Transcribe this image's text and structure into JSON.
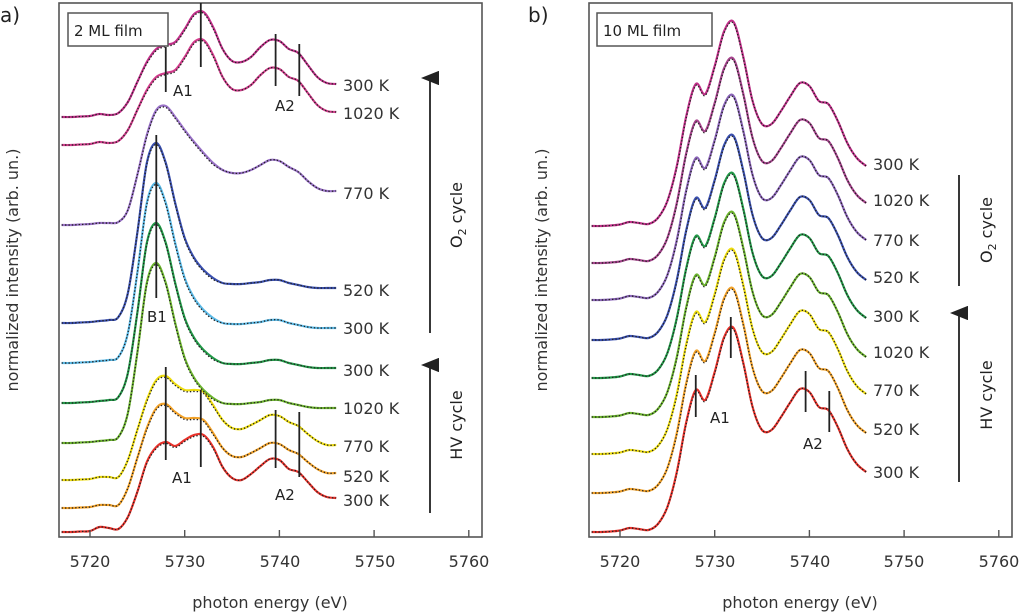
{
  "chart_data": [
    {
      "type": "line",
      "panel_label": "a)",
      "legend": "2 ML film",
      "xlabel": "photon energy (eV)",
      "ylabel": "normalized intensity (arb. un.)",
      "xlim": [
        5716.7,
        5761.4
      ],
      "ylim": [
        0,
        53.4
      ],
      "xticks": [
        "5720",
        "5730",
        "5740",
        "5750",
        "5760"
      ],
      "x": [
        5717,
        5718,
        5719,
        5720,
        5721,
        5722,
        5723,
        5724,
        5725,
        5726,
        5727,
        5728,
        5729,
        5730,
        5731,
        5732,
        5733,
        5734,
        5735,
        5736,
        5737,
        5738,
        5739,
        5740,
        5741,
        5742,
        5743,
        5744,
        5745,
        5746
      ],
      "shapes": {
        "A_HV300": [
          0,
          0,
          0.05,
          0.1,
          0.5,
          0.4,
          0.3,
          1.5,
          4,
          7,
          8.5,
          9.0,
          8.6,
          9.2,
          9.7,
          9.7,
          8.5,
          6.5,
          5.4,
          5.2,
          5.8,
          6.6,
          7.3,
          7.2,
          6.3,
          6.0,
          5.0,
          4.0,
          3.5,
          3.4
        ],
        "A_HV": [
          0,
          0,
          0.05,
          0.1,
          0.3,
          0.3,
          0.3,
          2,
          5,
          8,
          10,
          10.4,
          9.6,
          9.0,
          9.0,
          8.8,
          7.5,
          6.0,
          5.2,
          5.1,
          5.5,
          6.0,
          6.5,
          6.4,
          5.8,
          5.4,
          4.6,
          3.9,
          3.5,
          3.5
        ],
        "B": [
          0,
          0,
          0.05,
          0.1,
          0.2,
          0.3,
          0.6,
          3,
          9,
          16,
          18,
          16,
          12,
          8.5,
          6.5,
          5.3,
          4.5,
          4.0,
          3.9,
          3.9,
          4.0,
          4.1,
          4.3,
          4.3,
          4.0,
          3.8,
          3.6,
          3.5,
          3.5,
          3.5
        ],
        "O2_770": [
          0,
          0,
          0.05,
          0.1,
          0.2,
          0.2,
          0.3,
          1.5,
          5,
          9,
          11.5,
          11.9,
          10.8,
          9.5,
          8.3,
          7.2,
          6.2,
          5.5,
          5.2,
          5.2,
          5.5,
          6.0,
          6.5,
          6.4,
          5.8,
          5.3,
          4.4,
          3.7,
          3.4,
          3.4
        ],
        "A_O2": [
          0,
          0,
          0.05,
          0.1,
          0.3,
          0.2,
          0.4,
          1.5,
          3.5,
          5.5,
          6.8,
          7.2,
          7.5,
          8.8,
          10.3,
          10.5,
          9.0,
          6.8,
          5.6,
          5.5,
          6.0,
          7.0,
          7.7,
          7.6,
          6.8,
          6.4,
          5.2,
          4.0,
          3.4,
          3.3
        ]
      },
      "series": [
        {
          "label": "300 K",
          "cycle": "HV",
          "color": "#e8312a",
          "shape": "A_HV300",
          "offset": 0.5
        },
        {
          "label": "520 K",
          "cycle": "HV",
          "color": "#f3a228",
          "shape": "A_HV",
          "offset": 2.9
        },
        {
          "label": "770 K",
          "cycle": "HV",
          "color": "#eedd10",
          "shape": "A_HV",
          "offset": 5.7
        },
        {
          "label": "1020 K",
          "cycle": "HV",
          "color": "#6cb52e",
          "shape": "B",
          "offset": 9.4
        },
        {
          "label": "300 K",
          "cycle": "HV",
          "color": "#229a48",
          "shape": "B",
          "offset": 13.4
        },
        {
          "label": "300 K",
          "cycle": "O2",
          "color": "#5ab9e6",
          "shape": "B",
          "offset": 17.4
        },
        {
          "label": "520 K",
          "cycle": "O2",
          "color": "#3a50b0",
          "shape": "B",
          "offset": 21.4
        },
        {
          "label": "770 K",
          "cycle": "O2",
          "color": "#9a72c8",
          "shape": "O2_770",
          "offset": 31.2
        },
        {
          "label": "1020 K",
          "cycle": "O2",
          "color": "#d23c8c",
          "shape": "A_O2",
          "offset": 39.2
        },
        {
          "label": "300 K",
          "cycle": "O2",
          "color": "#c2308a",
          "shape": "A_O2",
          "offset": 42.0
        }
      ],
      "annotations": [
        {
          "label": "A1",
          "energies": [
            5728,
            5731.7
          ]
        },
        {
          "label": "A2",
          "energies": [
            5739.6,
            5742.1
          ]
        },
        {
          "label": "B1",
          "energies": [
            5727
          ]
        },
        {
          "label": "A1",
          "energies": [
            5728,
            5731.7
          ]
        },
        {
          "label": "A2",
          "energies": [
            5739.6,
            5742.1
          ]
        }
      ],
      "cycles": [
        {
          "main": "O",
          "sub": "2",
          "suffix": " cycle"
        },
        {
          "main": "HV cycle"
        }
      ]
    },
    {
      "type": "line",
      "panel_label": "b)",
      "legend": "10 ML film",
      "xlabel": "photon energy (eV)",
      "ylabel": "normalized intensity (arb. un.)",
      "xlim": [
        5716.7,
        5761.4
      ],
      "ylim": [
        0,
        53.4
      ],
      "xticks": [
        "5720",
        "5730",
        "5740",
        "5750",
        "5760"
      ],
      "x": [
        5717,
        5718,
        5719,
        5720,
        5721,
        5722,
        5723,
        5724,
        5725,
        5726,
        5727,
        5728,
        5729,
        5730,
        5731,
        5732,
        5733,
        5734,
        5735,
        5736,
        5737,
        5738,
        5739,
        5740,
        5741,
        5742,
        5743,
        5744,
        5745,
        5746
      ],
      "shapes": {
        "A10": [
          0,
          0,
          0.05,
          0.15,
          0.4,
          0.3,
          0.2,
          0.8,
          2.5,
          6,
          11,
          14.2,
          13.2,
          16,
          19.5,
          20.4,
          17,
          12.5,
          10.2,
          10.2,
          11.5,
          13,
          14.3,
          14.0,
          12.5,
          12.2,
          10.5,
          8.3,
          6.8,
          6.0
        ]
      },
      "series": [
        {
          "label": "300 K",
          "cycle": "HV",
          "color": "#e8312a",
          "shape": "A10",
          "offset": 0.5
        },
        {
          "label": "520 K",
          "cycle": "HV",
          "color": "#f3a228",
          "shape": "A10",
          "offset": 4.4
        },
        {
          "label": "770 K",
          "cycle": "HV",
          "color": "#eedd10",
          "shape": "A10",
          "offset": 8.3
        },
        {
          "label": "1020 K",
          "cycle": "HV",
          "color": "#6cb52e",
          "shape": "A10",
          "offset": 12.0
        },
        {
          "label": "300 K",
          "cycle": "HV",
          "color": "#229a48",
          "shape": "A10",
          "offset": 15.9
        },
        {
          "label": "520 K",
          "cycle": "O2",
          "color": "#3a50b0",
          "shape": "A10",
          "offset": 19.7
        },
        {
          "label": "770 K",
          "cycle": "O2",
          "color": "#8a64b8",
          "shape": "A10",
          "offset": 23.7
        },
        {
          "label": "1020 K",
          "cycle": "O2",
          "color": "#a8448e",
          "shape": "A10",
          "offset": 27.4
        },
        {
          "label": "300 K",
          "cycle": "O2",
          "color": "#c2308a",
          "shape": "A10",
          "offset": 31.1
        }
      ],
      "annotations": [
        {
          "label": "A1",
          "energies": [
            5728,
            5731.7
          ]
        },
        {
          "label": "A2",
          "energies": [
            5739.6,
            5742.1
          ]
        }
      ],
      "cycles": [
        {
          "main": "O",
          "sub": "2",
          "suffix": " cycle"
        },
        {
          "main": "HV cycle"
        }
      ]
    }
  ]
}
